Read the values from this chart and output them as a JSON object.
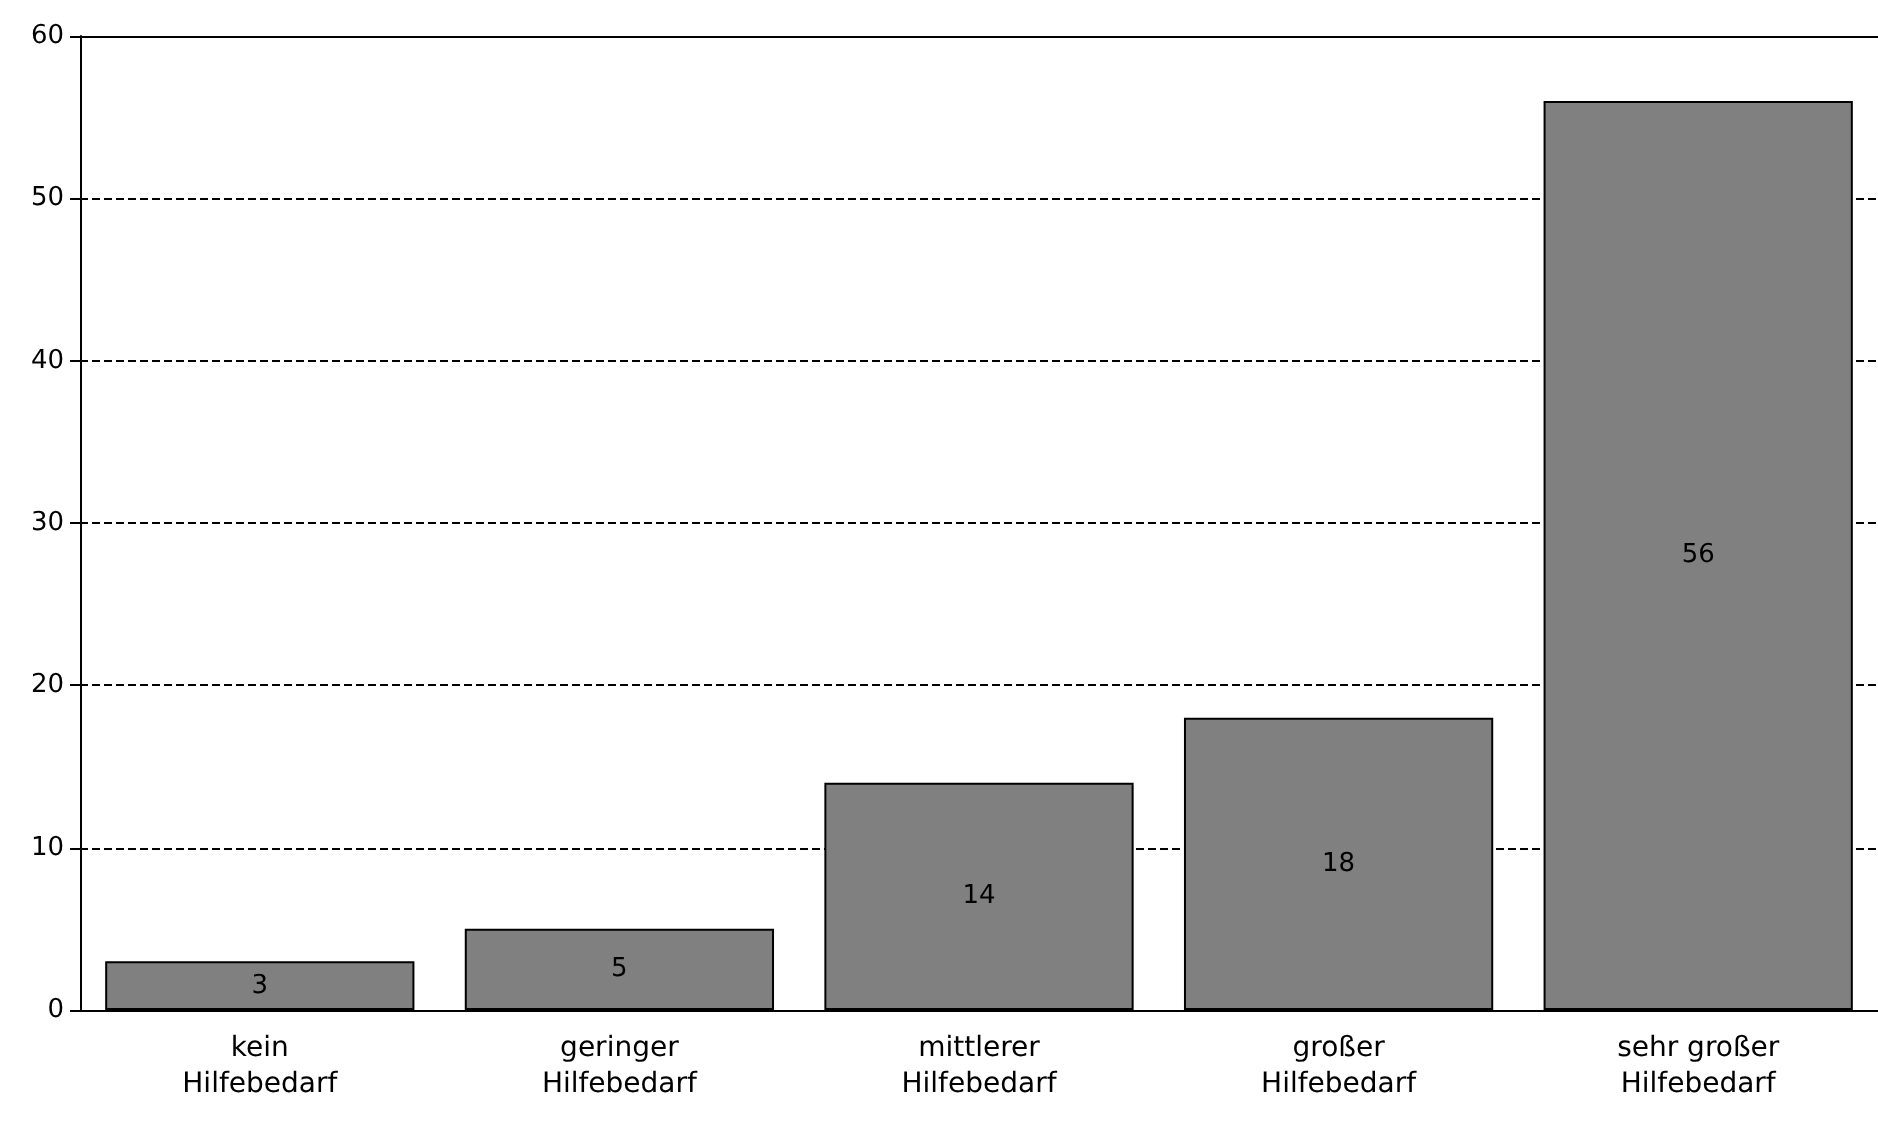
{
  "chart_data": {
    "type": "bar",
    "categories": [
      "kein\nHilfebedarf",
      "geringer\nHilfebedarf",
      "mittlerer\nHilfebedarf",
      "großer\nHilfebedarf",
      "sehr großer\nHilfebedarf"
    ],
    "values": [
      3,
      5,
      14,
      18,
      56
    ],
    "color": "#808080",
    "ylim": [
      0,
      60
    ],
    "yticks": [
      0,
      10,
      20,
      30,
      40,
      50,
      60
    ],
    "grid": "y",
    "data_labels": true
  }
}
